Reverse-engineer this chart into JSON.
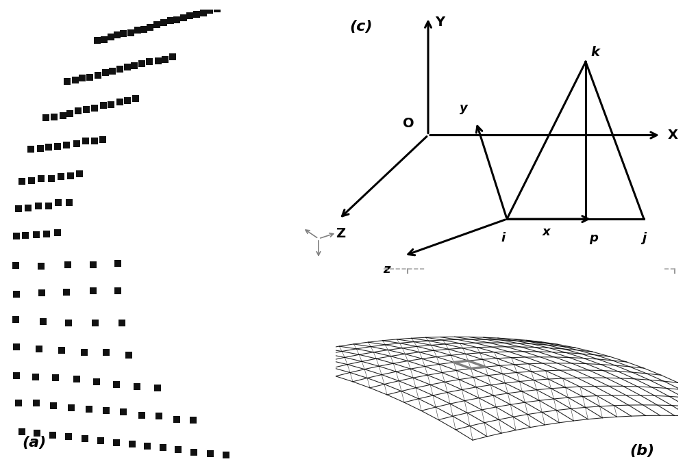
{
  "fig_width": 10.0,
  "fig_height": 6.84,
  "bg_color": "#ffffff",
  "border_color": "#999999",
  "arrow_color": "#000000",
  "dot_color": "#111111",
  "label_a": "(a)",
  "label_b": "(b)",
  "label_c": "(c)"
}
